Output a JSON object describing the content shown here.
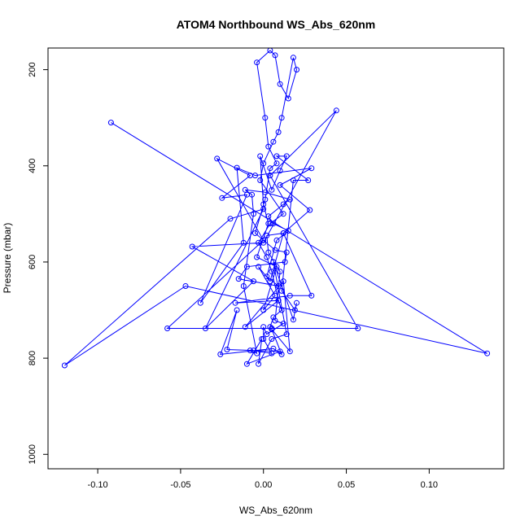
{
  "chart_data": {
    "type": "line",
    "title": "ATOM4 Northbound WS_Abs_620nm",
    "xlabel": "WS_Abs_620nm",
    "ylabel": "Pressure (mbar)",
    "xlim": [
      -0.13,
      0.145
    ],
    "ylim": [
      1030,
      155
    ],
    "y_reversed": true,
    "grid": false,
    "series_color": "#0000ff",
    "x_ticks": [
      -0.1,
      -0.05,
      0.0,
      0.05,
      0.1
    ],
    "x_tick_labels": [
      "-0.10",
      "-0.05",
      "0.00",
      "0.05",
      "0.10"
    ],
    "y_ticks": [
      200,
      400,
      600,
      800,
      1000
    ],
    "y_tick_labels": [
      "200",
      "400",
      "600",
      "800",
      "1000"
    ],
    "series": [
      {
        "points": [
          [
            -0.092,
            310
          ],
          [
            0.135,
            790
          ],
          [
            -0.047,
            650
          ],
          [
            -0.12,
            815
          ],
          [
            -0.02,
            510
          ],
          [
            0.0,
            490
          ],
          [
            -0.035,
            738
          ],
          [
            -0.006,
            640
          ],
          [
            -0.043,
            568
          ],
          [
            0.0,
            560
          ],
          [
            0.044,
            285
          ],
          [
            0.004,
            420
          ],
          [
            0.057,
            738
          ],
          [
            0.005,
            738
          ],
          [
            -0.058,
            738
          ],
          [
            0.0,
            555
          ],
          [
            -0.028,
            385
          ],
          [
            -0.008,
            420
          ],
          [
            -0.025,
            467
          ],
          [
            -0.01,
            460
          ],
          [
            -0.038,
            685
          ],
          [
            -0.012,
            560
          ],
          [
            -0.016,
            404
          ],
          [
            -0.005,
            420
          ],
          [
            0.029,
            405
          ],
          [
            0.01,
            440
          ],
          [
            0.028,
            492
          ],
          [
            0.012,
            540
          ],
          [
            0.029,
            670
          ],
          [
            0.016,
            670
          ],
          [
            -0.017,
            685
          ],
          [
            0.009,
            680
          ],
          [
            -0.011,
            735
          ],
          [
            0.012,
            640
          ],
          [
            0.016,
            786
          ],
          [
            0.005,
            740
          ],
          [
            0.011,
            792
          ],
          [
            0.006,
            780
          ],
          [
            -0.026,
            792
          ],
          [
            -0.016,
            700
          ],
          [
            -0.022,
            782
          ],
          [
            0.01,
            786
          ],
          [
            -0.01,
            812
          ],
          [
            -0.001,
            760
          ],
          [
            -0.003,
            812
          ],
          [
            0.005,
            760
          ],
          [
            0.014,
            750
          ],
          [
            0.006,
            600
          ],
          [
            0.018,
            720
          ],
          [
            0.02,
            685
          ],
          [
            0.019,
            700
          ],
          [
            0.011,
            660
          ],
          [
            0.018,
            430
          ],
          [
            0.027,
            430
          ],
          [
            0.008,
            380
          ],
          [
            0.014,
            380
          ],
          [
            0.01,
            410
          ],
          [
            0.005,
            450
          ],
          [
            -0.002,
            380
          ],
          [
            0.0,
            480
          ],
          [
            0.003,
            520
          ],
          [
            -0.004,
            590
          ],
          [
            0.008,
            610
          ],
          [
            0.0,
            700
          ],
          [
            0.007,
            670
          ],
          [
            -0.003,
            610
          ],
          [
            0.004,
            640
          ],
          [
            0.012,
            540
          ],
          [
            0.002,
            545
          ],
          [
            0.003,
            580
          ],
          [
            0.01,
            620
          ],
          [
            0.007,
            722
          ],
          [
            0.012,
            728
          ],
          [
            0.002,
            750
          ],
          [
            0.0,
            735
          ],
          [
            0.0,
            760
          ],
          [
            0.005,
            790
          ],
          [
            -0.006,
            784
          ],
          [
            -0.008,
            784
          ],
          [
            -0.004,
            790
          ],
          [
            -0.012,
            650
          ],
          [
            -0.006,
            500
          ],
          [
            -0.007,
            460
          ],
          [
            -0.011,
            450
          ],
          [
            0.001,
            455
          ],
          [
            0.016,
            470
          ],
          [
            0.012,
            480
          ],
          [
            0.003,
            505
          ],
          [
            0.006,
            520
          ],
          [
            0.015,
            535
          ],
          [
            0.008,
            555
          ],
          [
            0.002,
            630
          ],
          [
            0.009,
            650
          ],
          [
            -0.015,
            635
          ],
          [
            -0.01,
            610
          ],
          [
            0.013,
            600
          ],
          [
            0.014,
            580
          ],
          [
            0.007,
            575
          ],
          [
            -0.005,
            540
          ],
          [
            0.001,
            470
          ],
          [
            0.004,
            405
          ],
          [
            0.008,
            395
          ],
          [
            0.003,
            360
          ],
          [
            0.001,
            300
          ],
          [
            -0.004,
            185
          ],
          [
            0.004,
            160
          ],
          [
            0.007,
            170
          ],
          [
            0.01,
            230
          ],
          [
            0.015,
            260
          ],
          [
            0.02,
            200
          ],
          [
            0.018,
            175
          ],
          [
            0.011,
            300
          ],
          [
            0.009,
            330
          ],
          [
            0.006,
            350
          ],
          [
            0.0,
            395
          ],
          [
            -0.002,
            430
          ],
          [
            0.012,
            500
          ],
          [
            0.004,
            520
          ],
          [
            -0.003,
            560
          ],
          [
            0.002,
            590
          ],
          [
            0.005,
            620
          ],
          [
            0.009,
            680
          ],
          [
            0.011,
            700
          ],
          [
            0.006,
            715
          ],
          [
            0.004,
            735
          ]
        ]
      }
    ]
  }
}
